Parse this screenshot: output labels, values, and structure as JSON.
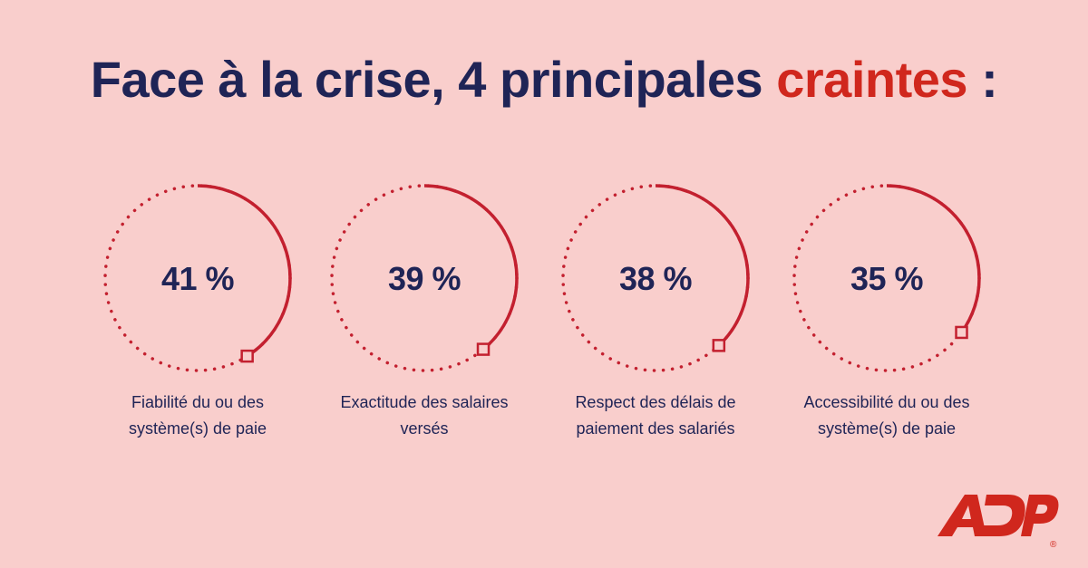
{
  "title": {
    "main": "Face à la crise, 4 principales ",
    "accent": "craintes",
    "suffix": " :"
  },
  "colors": {
    "background": "#f9cecc",
    "text": "#1f2456",
    "accent": "#d0271d",
    "ring": "#c3202f"
  },
  "chart_data": {
    "type": "gauge",
    "items": [
      {
        "value": 41,
        "display": "41 %",
        "label_line1": "Fiabilité du ou des",
        "label_line2": "système(s) de paie"
      },
      {
        "value": 39,
        "display": "39 %",
        "label_line1": "Exactitude des salaires",
        "label_line2": "versés"
      },
      {
        "value": 38,
        "display": "38 %",
        "label_line1": "Respect des délais de",
        "label_line2": "paiement des salariés"
      },
      {
        "value": 35,
        "display": "35 %",
        "label_line1": "Accessibilité du ou des",
        "label_line2": "système(s) de paie"
      }
    ]
  },
  "logo": {
    "text": "ADP",
    "registered": "®"
  }
}
